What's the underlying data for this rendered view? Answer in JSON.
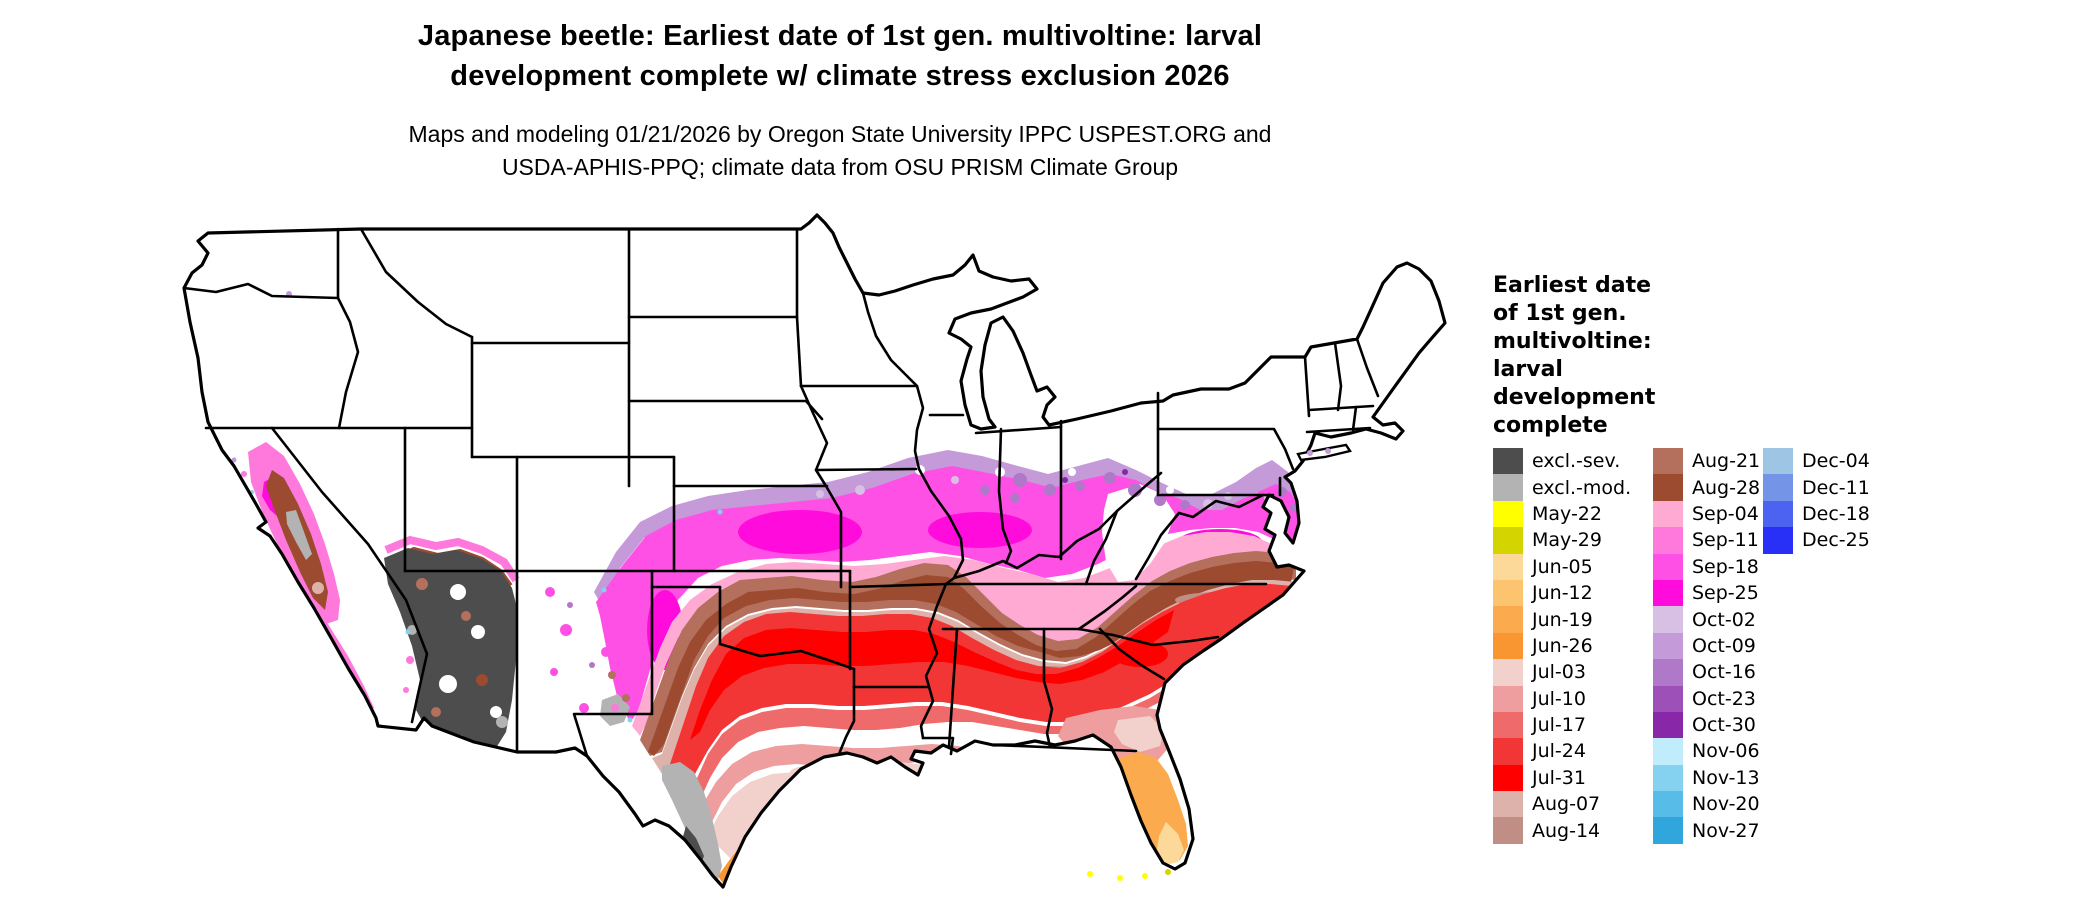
{
  "title": {
    "line1": "Japanese beetle: Earliest date of 1st gen. multivoltine: larval",
    "line2": "development complete w/ climate stress exclusion 2026"
  },
  "subtitle": {
    "line1": "Maps and modeling 01/21/2026 by Oregon State University IPPC USPEST.ORG and",
    "line2": "USDA-APHIS-PPQ; climate data from OSU PRISM Climate Group"
  },
  "legend": {
    "title_lines": [
      "Earliest date",
      "of 1st gen.",
      "multivoltine:",
      "larval",
      "development",
      "complete"
    ],
    "columns": [
      {
        "entries": [
          {
            "label": "excl.-sev.",
            "color": "#4d4d4d"
          },
          {
            "label": "excl.-mod.",
            "color": "#b3b3b3"
          },
          {
            "label": "May-22",
            "color": "#ffff00"
          },
          {
            "label": "May-29",
            "color": "#d4d400"
          },
          {
            "label": "Jun-05",
            "color": "#fcd998"
          },
          {
            "label": "Jun-12",
            "color": "#fcc46e"
          },
          {
            "label": "Jun-19",
            "color": "#fbaa4e"
          },
          {
            "label": "Jun-26",
            "color": "#f99632"
          },
          {
            "label": "Jul-03",
            "color": "#f2d0cc"
          },
          {
            "label": "Jul-10",
            "color": "#ee9e9e"
          },
          {
            "label": "Jul-17",
            "color": "#ef6a6a"
          },
          {
            "label": "Jul-24",
            "color": "#f23535"
          },
          {
            "label": "Jul-31",
            "color": "#ff0000"
          },
          {
            "label": "Aug-07",
            "color": "#ddb2ab"
          },
          {
            "label": "Aug-14",
            "color": "#c18e85"
          }
        ]
      },
      {
        "entries": [
          {
            "label": "Aug-21",
            "color": "#b4705c"
          },
          {
            "label": "Aug-28",
            "color": "#9c4a30"
          },
          {
            "label": "Sep-04",
            "color": "#ffaad2"
          },
          {
            "label": "Sep-11",
            "color": "#ff78dc"
          },
          {
            "label": "Sep-18",
            "color": "#fe50e4"
          },
          {
            "label": "Sep-25",
            "color": "#ff0cdc"
          },
          {
            "label": "Oct-02",
            "color": "#d8c0e4"
          },
          {
            "label": "Oct-09",
            "color": "#c49ad8"
          },
          {
            "label": "Oct-16",
            "color": "#b078c8"
          },
          {
            "label": "Oct-23",
            "color": "#9c50b8"
          },
          {
            "label": "Oct-30",
            "color": "#8828a8"
          },
          {
            "label": "Nov-06",
            "color": "#c0ecfc"
          },
          {
            "label": "Nov-13",
            "color": "#84d2f0"
          },
          {
            "label": "Nov-20",
            "color": "#58bce8"
          },
          {
            "label": "Nov-27",
            "color": "#30a6dc"
          }
        ]
      },
      {
        "entries": [
          {
            "label": "Dec-04",
            "color": "#9ec6e4"
          },
          {
            "label": "Dec-11",
            "color": "#7494e8"
          },
          {
            "label": "Dec-18",
            "color": "#4c62f0"
          },
          {
            "label": "Dec-25",
            "color": "#2830f8"
          }
        ]
      }
    ]
  },
  "map": {
    "region": "Contiguous United States",
    "kind": "choropleth of earliest date classes"
  }
}
